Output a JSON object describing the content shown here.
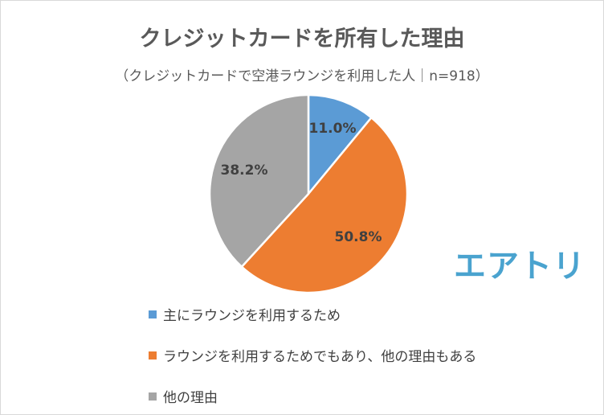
{
  "chart_data": {
    "type": "pie",
    "title": "クレジットカードを所有した理由",
    "subtitle": "（クレジットカードで空港ラウンジを利用した人｜n=918）",
    "slices": [
      {
        "label": "主にラウンジを利用するため",
        "value": 11.0,
        "display": "11.0%",
        "color": "#5b9bd5"
      },
      {
        "label": "ラウンジを利用するためでもあり、他の理由もある",
        "value": 50.8,
        "display": "50.8%",
        "color": "#ed7d31"
      },
      {
        "label": "他の理由",
        "value": 38.2,
        "display": "38.2%",
        "color": "#a5a5a5"
      }
    ],
    "legend_position": "bottom"
  },
  "logo": {
    "text": "エアトリ"
  }
}
